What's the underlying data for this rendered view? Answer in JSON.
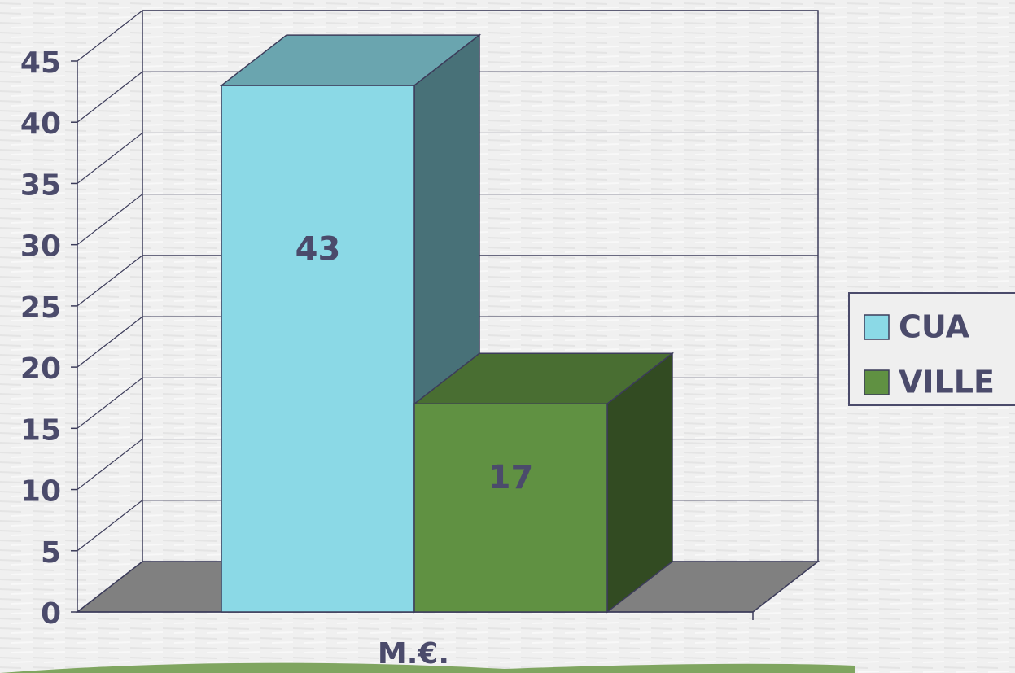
{
  "chart_data": {
    "type": "bar3d",
    "categories": [
      "M.€."
    ],
    "series": [
      {
        "name": "CUA",
        "color": "#8bd9e6",
        "values": [
          43
        ]
      },
      {
        "name": "VILLE",
        "color": "#609142",
        "values": [
          17
        ]
      }
    ],
    "ylim": [
      0,
      45
    ],
    "yticks": [
      0,
      5,
      10,
      15,
      20,
      25,
      30,
      35,
      40,
      45
    ],
    "grid": true
  }
}
